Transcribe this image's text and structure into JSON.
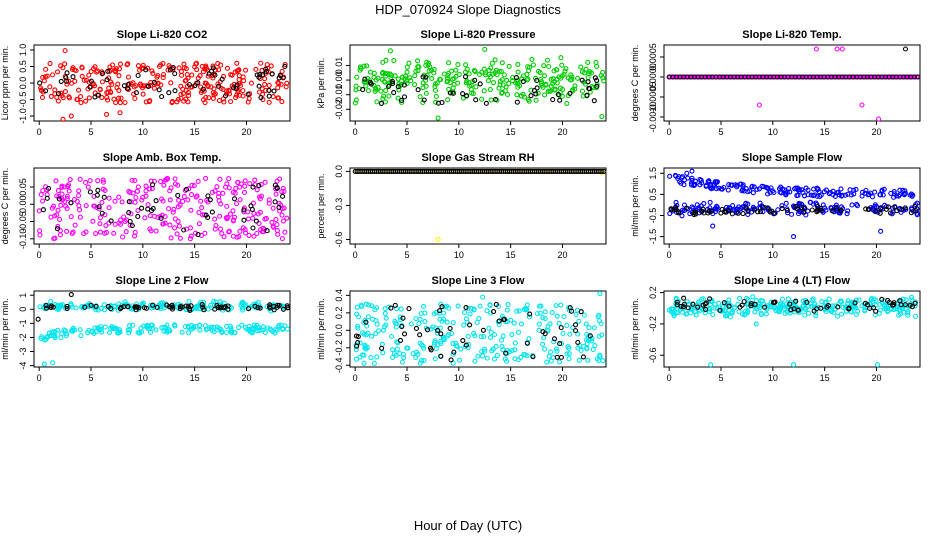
{
  "figure": {
    "title": "HDP_070924  Slope Diagnostics",
    "xlabel": "Hour of Day (UTC)"
  },
  "colors": {
    "red": "#ff0000",
    "green": "#00cc00",
    "magenta": "#ff00ff",
    "yellow": "#ffff00",
    "blue": "#0000ff",
    "cyan": "#00e5ee",
    "black": "#000000"
  },
  "chart_data": [
    {
      "type": "scatter",
      "title": "Slope Li-820 CO2",
      "ylabel": "Licor ppm per min.",
      "xlim": [
        -0.5,
        24.2
      ],
      "ylim": [
        -1.15,
        1.15
      ],
      "xticks": [
        0,
        5,
        10,
        15,
        20
      ],
      "yticks": [
        -1.0,
        -0.5,
        0.0,
        0.5,
        1.0
      ],
      "yticklabels": [
        "-1.0",
        "-0.5",
        "0.0",
        "0.5",
        "1.0"
      ],
      "grid": false,
      "legend": "none",
      "series": [
        {
          "color": "red",
          "role": "main",
          "count": 300,
          "pattern": "uniform",
          "range": [
            -0.6,
            0.6
          ],
          "outliers": [
            [
              2.5,
              0.98
            ],
            [
              2.3,
              -1.1
            ],
            [
              3.1,
              -1.0
            ],
            [
              6.5,
              -0.95
            ],
            [
              7.8,
              -0.9
            ]
          ]
        },
        {
          "color": "black",
          "role": "overlay",
          "count": 60,
          "pattern": "uniform",
          "range": [
            -0.45,
            0.5
          ],
          "outliers": [
            [
              23.7,
              0.5
            ]
          ]
        }
      ]
    },
    {
      "type": "scatter",
      "title": "Slope Li-820 Pressure",
      "ylabel": "kPa per min.",
      "xlim": [
        -0.5,
        24.2
      ],
      "ylim": [
        -0.028,
        0.024
      ],
      "xticks": [
        0,
        5,
        10,
        15,
        20
      ],
      "yticks": [
        -0.02,
        -0.01,
        0.0,
        0.01
      ],
      "yticklabels": [
        "-0.02",
        "-0.01",
        "0.00",
        "0.01"
      ],
      "grid": false,
      "legend": "none",
      "series": [
        {
          "color": "green",
          "role": "main",
          "count": 300,
          "pattern": "band",
          "range": [
            -0.017,
            0.017
          ],
          "outliers": [
            [
              8.0,
              -0.026
            ],
            [
              23.8,
              -0.025
            ],
            [
              3.4,
              0.02
            ],
            [
              12.5,
              0.021
            ]
          ]
        },
        {
          "color": "black",
          "role": "overlay",
          "count": 50,
          "pattern": "uniform",
          "range": [
            -0.016,
            0.003
          ],
          "outliers": []
        }
      ]
    },
    {
      "type": "scatter",
      "title": "Slope Li-820 Temp.",
      "ylabel": "degrees C per min.",
      "xlim": [
        -0.5,
        24.2
      ],
      "ylim": [
        -0.0011,
        0.0008
      ],
      "xticks": [
        0,
        5,
        10,
        15,
        20
      ],
      "yticks": [
        -0.001,
        -0.0005,
        0.0,
        0.0005
      ],
      "yticklabels": [
        "-0.0010",
        "-0.0005",
        "0.0000",
        "0.0005"
      ],
      "grid": false,
      "legend": "none",
      "series": [
        {
          "color": "magenta",
          "role": "main",
          "count": 160,
          "pattern": "flat",
          "range": [
            0.0,
            0.0
          ],
          "outliers": [
            [
              8.7,
              -0.0007
            ],
            [
              14.2,
              0.0007
            ],
            [
              16.2,
              0.0007
            ],
            [
              16.7,
              0.0007
            ],
            [
              18.6,
              -0.0007
            ],
            [
              20.2,
              -0.00105
            ],
            [
              23.0,
              0.0
            ]
          ]
        },
        {
          "color": "black",
          "role": "overlay",
          "count": 70,
          "pattern": "flat",
          "range": [
            0.0,
            0.0
          ],
          "outliers": [
            [
              22.8,
              0.0007
            ]
          ]
        }
      ]
    },
    {
      "type": "scatter",
      "title": "Slope Amb. Box Temp.",
      "ylabel": "degrees C per min.",
      "xlim": [
        -0.5,
        24.2
      ],
      "ylim": [
        -0.115,
        0.105
      ],
      "xticks": [
        0,
        5,
        10,
        15,
        20
      ],
      "yticks": [
        -0.1,
        -0.05,
        0.0,
        0.05
      ],
      "yticklabels": [
        "-0.10",
        "-0.05",
        "0.00",
        "0.05"
      ],
      "grid": false,
      "legend": "none",
      "series": [
        {
          "color": "magenta",
          "role": "main",
          "count": 300,
          "pattern": "uniform",
          "range": [
            -0.1,
            0.075
          ],
          "outliers": []
        },
        {
          "color": "black",
          "role": "overlay",
          "count": 50,
          "pattern": "uniform",
          "range": [
            -0.09,
            0.06
          ],
          "outliers": []
        }
      ]
    },
    {
      "type": "scatter",
      "title": "Slope Gas Stream RH",
      "ylabel": "percent per min.",
      "xlim": [
        -0.5,
        24.2
      ],
      "ylim": [
        -0.64,
        0.03
      ],
      "xticks": [
        0,
        5,
        10,
        15,
        20
      ],
      "yticks": [
        -0.6,
        -0.3,
        0.0
      ],
      "yticklabels": [
        "-0.6",
        "-0.3",
        "0.0"
      ],
      "grid": false,
      "legend": "none",
      "series": [
        {
          "color": "yellow",
          "role": "main",
          "count": 130,
          "pattern": "flat",
          "range": [
            0.0,
            0.0
          ],
          "outliers": [
            [
              8.0,
              -0.6
            ],
            [
              23.8,
              -0.01
            ]
          ]
        },
        {
          "color": "black",
          "role": "overlay",
          "count": 130,
          "pattern": "flat",
          "range": [
            0.0,
            0.0
          ],
          "outliers": []
        }
      ]
    },
    {
      "type": "scatter",
      "title": "Slope Sample Flow",
      "ylabel": "ml/min per min.",
      "xlim": [
        -0.5,
        24.2
      ],
      "ylim": [
        -1.85,
        1.75
      ],
      "xticks": [
        0,
        5,
        10,
        15,
        20
      ],
      "yticks": [
        -1.5,
        -0.5,
        0.5,
        1.5
      ],
      "yticklabels": [
        "-1.5",
        "-0.5",
        "0.5",
        "1.5"
      ],
      "grid": false,
      "legend": "none",
      "series": [
        {
          "color": "blue",
          "role": "upper-band",
          "count": 170,
          "pattern": "decay",
          "range": [
            1.3,
            0.5
          ],
          "outliers": [
            [
              2.2,
              1.6
            ],
            [
              1.7,
              1.5
            ]
          ]
        },
        {
          "color": "blue",
          "role": "lower-band",
          "count": 170,
          "pattern": "band",
          "range": [
            -0.55,
            0.15
          ],
          "outliers": [
            [
              4.2,
              -1.0
            ],
            [
              12.0,
              -1.5
            ],
            [
              20.4,
              -1.25
            ]
          ]
        },
        {
          "color": "black",
          "role": "overlay",
          "count": 70,
          "pattern": "band",
          "range": [
            -0.5,
            0.0
          ],
          "outliers": []
        }
      ]
    },
    {
      "type": "scatter",
      "title": "Slope Line 2 Flow",
      "ylabel": "ml/min per min.",
      "xlim": [
        -0.5,
        24.2
      ],
      "ylim": [
        -4.1,
        1.3
      ],
      "xticks": [
        0,
        5,
        10,
        15,
        20
      ],
      "yticks": [
        -4,
        -3,
        -2,
        -1,
        0,
        1
      ],
      "yticklabels": [
        "-4",
        "-3",
        "-2",
        "-1",
        "0",
        "1"
      ],
      "grid": false,
      "legend": "none",
      "series": [
        {
          "color": "cyan",
          "role": "upper-band",
          "count": 170,
          "pattern": "band",
          "range": [
            -0.15,
            0.6
          ],
          "outliers": []
        },
        {
          "color": "cyan",
          "role": "lower-band",
          "count": 170,
          "pattern": "rise",
          "range": [
            -2.6,
            -1.4
          ],
          "outliers": [
            [
              0.5,
              -3.9
            ],
            [
              1.3,
              -3.8
            ]
          ]
        },
        {
          "color": "black",
          "role": "overlay",
          "count": 70,
          "pattern": "band",
          "range": [
            -0.1,
            0.4
          ],
          "outliers": [
            [
              -0.1,
              -0.7
            ],
            [
              3.1,
              1.05
            ]
          ]
        }
      ]
    },
    {
      "type": "scatter",
      "title": "Slope Line 3 Flow",
      "ylabel": "ml/min per min.",
      "xlim": [
        -0.5,
        24.2
      ],
      "ylim": [
        -0.42,
        0.45
      ],
      "xticks": [
        0,
        5,
        10,
        15,
        20
      ],
      "yticks": [
        -0.4,
        -0.2,
        0.0,
        0.2,
        0.4
      ],
      "yticklabels": [
        "-0.4",
        "-0.2",
        "0.0",
        "0.2",
        "0.4"
      ],
      "grid": false,
      "legend": "none",
      "series": [
        {
          "color": "cyan",
          "role": "main",
          "count": 300,
          "pattern": "uniform",
          "range": [
            -0.38,
            0.3
          ],
          "outliers": [
            [
              23.6,
              0.42
            ],
            [
              12.3,
              0.38
            ]
          ]
        },
        {
          "color": "black",
          "role": "overlay",
          "count": 55,
          "pattern": "uniform",
          "range": [
            -0.35,
            0.3
          ],
          "outliers": []
        }
      ]
    },
    {
      "type": "scatter",
      "title": "Slope Line 4 (LT) Flow",
      "ylabel": "ml/min per min.",
      "xlim": [
        -0.5,
        24.2
      ],
      "ylim": [
        -0.75,
        0.22
      ],
      "xticks": [
        0,
        5,
        10,
        15,
        20
      ],
      "yticks": [
        -0.6,
        -0.2,
        0.2
      ],
      "yticklabels": [
        "-0.6",
        "-0.2",
        "0.2"
      ],
      "grid": false,
      "legend": "none",
      "series": [
        {
          "color": "cyan",
          "role": "main",
          "count": 300,
          "pattern": "band",
          "range": [
            -0.12,
            0.15
          ],
          "outliers": [
            [
              4.0,
              -0.72
            ],
            [
              12.0,
              -0.72
            ],
            [
              20.1,
              -0.72
            ],
            [
              8.4,
              -0.2
            ]
          ]
        },
        {
          "color": "black",
          "role": "overlay",
          "count": 60,
          "pattern": "band",
          "range": [
            -0.05,
            0.14
          ],
          "outliers": []
        }
      ]
    }
  ]
}
